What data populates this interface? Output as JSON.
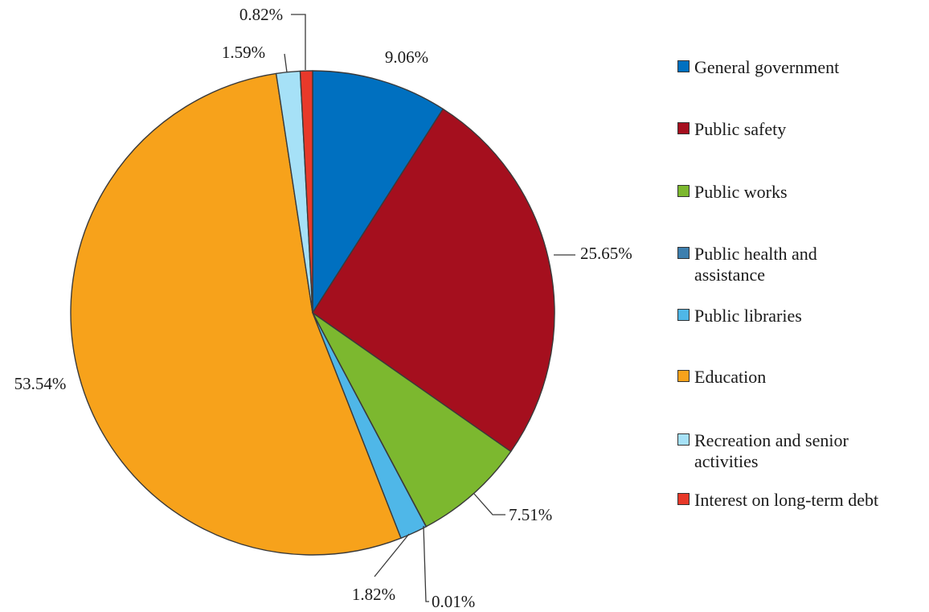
{
  "chart_data": {
    "type": "pie",
    "title": "",
    "start_angle_deg": 0,
    "direction": "clockwise",
    "legend_position": "right",
    "slices": [
      {
        "name": "General government",
        "value": 9.06,
        "label": "9.06%",
        "color": "#0070c0"
      },
      {
        "name": "Public safety",
        "value": 25.65,
        "label": "25.65%",
        "color": "#a50f1e"
      },
      {
        "name": "Public works",
        "value": 7.51,
        "label": "7.51%",
        "color": "#7cb82f"
      },
      {
        "name": "Public health and assistance",
        "value": 0.01,
        "label": "0.01%",
        "color": "#3d7fae"
      },
      {
        "name": "Public libraries",
        "value": 1.82,
        "label": "1.82%",
        "color": "#4fb7e8"
      },
      {
        "name": "Education",
        "value": 53.54,
        "label": "53.54%",
        "color": "#f7a21b"
      },
      {
        "name": "Recreation and senior activities",
        "value": 1.59,
        "label": "1.59%",
        "color": "#a6e1f7"
      },
      {
        "name": "Interest on long-term debt",
        "value": 0.82,
        "label": "0.82%",
        "color": "#e8392a"
      }
    ]
  }
}
